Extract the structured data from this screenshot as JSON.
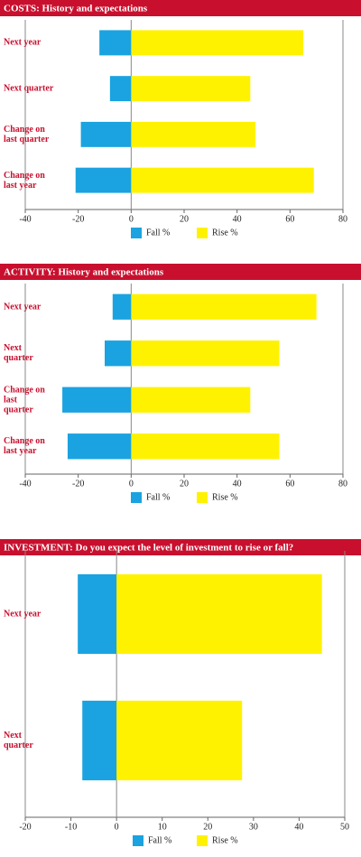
{
  "chart_data": [
    {
      "type": "bar",
      "orientation": "horizontal",
      "title": "COSTS: History and expectations",
      "categories": [
        "Next year",
        "Next quarter",
        "Change on last quarter",
        "Change on last year"
      ],
      "series": [
        {
          "name": "Fall %",
          "color": "#1aa3e0",
          "values": [
            -12,
            -8,
            -19,
            -21
          ]
        },
        {
          "name": "Rise %",
          "color": "#fff200",
          "values": [
            65,
            45,
            47,
            69
          ]
        }
      ],
      "xlim": [
        -40,
        80
      ],
      "xticks": [
        -40,
        -20,
        0,
        20,
        40,
        60,
        80
      ]
    },
    {
      "type": "bar",
      "orientation": "horizontal",
      "title": "ACTIVITY: History and expectations",
      "categories": [
        "Next year",
        "Next quarter",
        "Change on last quarter",
        "Change on last year"
      ],
      "series": [
        {
          "name": "Fall %",
          "color": "#1aa3e0",
          "values": [
            -7,
            -10,
            -26,
            -24
          ]
        },
        {
          "name": "Rise %",
          "color": "#fff200",
          "values": [
            70,
            56,
            45,
            56
          ]
        }
      ],
      "xlim": [
        -40,
        80
      ],
      "xticks": [
        -40,
        -20,
        0,
        20,
        40,
        60,
        80
      ]
    },
    {
      "type": "bar",
      "orientation": "horizontal",
      "title": "INVESTMENT: Do you expect the level of investment to rise or fall?",
      "categories": [
        "Next year",
        "Next quarter"
      ],
      "series": [
        {
          "name": "Fall %",
          "color": "#1aa3e0",
          "values": [
            -8.5,
            -7.5
          ]
        },
        {
          "name": "Rise %",
          "color": "#fff200",
          "values": [
            45,
            27.5
          ]
        }
      ],
      "xlim": [
        -20,
        50
      ],
      "xticks": [
        -20,
        -10,
        0,
        10,
        20,
        30,
        40,
        50
      ]
    }
  ]
}
